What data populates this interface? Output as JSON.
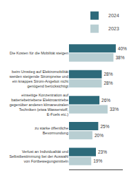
{
  "chart_data": {
    "type": "bar",
    "orientation": "horizontal",
    "categories": [
      "Die Kosten für die Mobilität steigen",
      "beim Umstieg auf Elektromobilität\nwerden steigende Strompreise und\nein knappes Strom-Angebot nicht\ngenügend berücksichtigt",
      "einseitige Konzentration auf\nbatteriebetriebene Elektroantriebe\ngegenüber anderen klimaneutralen\nTechniken (etwa Wasserstoff,\nE-Fuels etc.)",
      "zu starke öffentliche\nBevormundung",
      "Verlust an Individualität und\nSelbstbestimmung bei der Auswahl\nvon Fortbewegungsmitteln"
    ],
    "series": [
      {
        "name": "2024",
        "color": "#2d6a7a",
        "values": [
          40,
          28,
          26,
          25,
          23
        ],
        "value_labels": [
          "40%",
          "28%",
          "26%",
          "25%",
          "23%"
        ]
      },
      {
        "name": "2023",
        "color": "#b8ced2",
        "values": [
          38,
          28,
          33,
          20,
          19
        ],
        "value_labels": [
          "38%",
          "28%",
          "33%",
          "20%",
          "19%"
        ]
      }
    ],
    "xlim": [
      0,
      46
    ],
    "data_labels": true,
    "tick_labels": "y",
    "grid": false,
    "legend": "upper right"
  }
}
